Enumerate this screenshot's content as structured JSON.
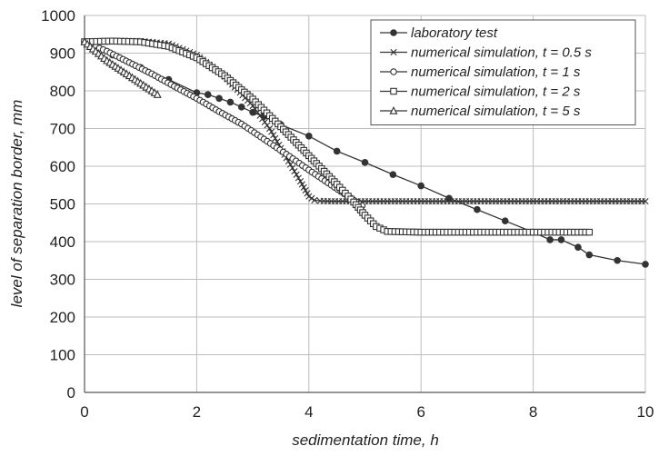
{
  "chart_data": {
    "type": "line",
    "xlabel": "sedimentation time, h",
    "ylabel": "level of separation border, mm",
    "xlim": [
      0,
      10
    ],
    "ylim": [
      0,
      1000
    ],
    "x_ticks": [
      "0",
      "2",
      "4",
      "6",
      "8",
      "10"
    ],
    "y_ticks": [
      "0",
      "100",
      "200",
      "300",
      "400",
      "500",
      "600",
      "700",
      "800",
      "900",
      "1000"
    ],
    "grid": true,
    "legend_position": "top-right",
    "colors": {
      "series": "#333333",
      "grid": "#bdbdbd",
      "background": "#ffffff"
    },
    "series": [
      {
        "name": "laboratory test",
        "marker": "filled-circle",
        "x": [
          0.0,
          0.5,
          1.0,
          1.5,
          2.0,
          2.2,
          2.4,
          2.6,
          2.8,
          3.0,
          3.2,
          3.5,
          4.0,
          4.5,
          5.0,
          5.5,
          6.0,
          6.5,
          7.0,
          7.5,
          8.0,
          8.3,
          8.5,
          8.8,
          9.0,
          9.5,
          10.0
        ],
        "y": [
          930,
          895,
          862,
          830,
          795,
          790,
          780,
          770,
          757,
          743,
          732,
          710,
          680,
          640,
          610,
          578,
          548,
          515,
          485,
          455,
          425,
          405,
          405,
          385,
          365,
          350,
          340
        ]
      },
      {
        "name": "numerical simulation, t = 0.5 s",
        "marker": "x-cross",
        "x": [
          0.0,
          0.5,
          1.0,
          1.5,
          2.0,
          2.5,
          3.0,
          3.3,
          3.6,
          3.85,
          4.0,
          4.1,
          4.2,
          4.4,
          4.8,
          5.0,
          6.0,
          7.0,
          8.0,
          9.0,
          10.0
        ],
        "y": [
          930,
          932,
          932,
          925,
          895,
          838,
          760,
          700,
          622,
          560,
          520,
          510,
          508,
          507,
          507,
          507,
          507,
          507,
          507,
          507,
          507
        ]
      },
      {
        "name": "numerical simulation, t = 1 s",
        "marker": "open-circle",
        "x": [
          0.0,
          0.4,
          0.8,
          1.2,
          1.6,
          2.0,
          2.4,
          2.8,
          3.2,
          3.6,
          4.0,
          4.4,
          4.8,
          4.95
        ],
        "y": [
          930,
          905,
          875,
          845,
          812,
          780,
          745,
          712,
          672,
          632,
          590,
          550,
          510,
          495
        ]
      },
      {
        "name": "numerical simulation, t = 2 s",
        "marker": "open-square",
        "x": [
          0.0,
          0.5,
          1.0,
          1.5,
          2.0,
          2.5,
          3.0,
          3.5,
          4.0,
          4.5,
          4.8,
          5.0,
          5.2,
          5.4,
          6.0,
          7.0,
          8.0,
          9.0
        ],
        "y": [
          930,
          932,
          930,
          918,
          888,
          840,
          778,
          705,
          628,
          552,
          505,
          470,
          440,
          427,
          425,
          425,
          425,
          425
        ]
      },
      {
        "name": "numerical simulation, t = 5 s",
        "marker": "open-triangle",
        "x": [
          0.0,
          0.2,
          0.4,
          0.6,
          0.8,
          1.0,
          1.2,
          1.3
        ],
        "y": [
          930,
          905,
          880,
          860,
          840,
          820,
          800,
          790
        ]
      }
    ]
  }
}
